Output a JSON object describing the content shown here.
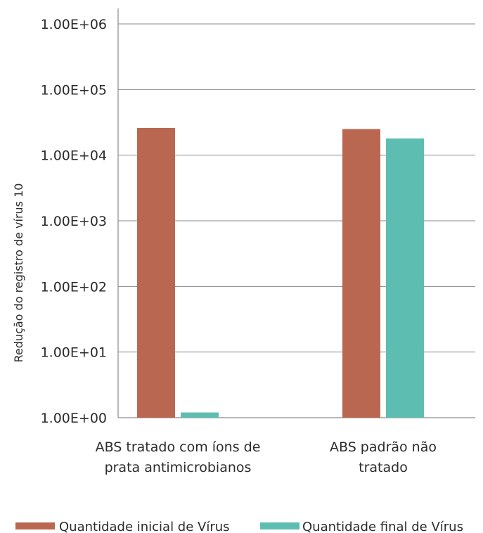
{
  "colors": {
    "series_initial": "#ba6751",
    "series_final": "#5dbdb1",
    "grid": "#8a8a8a",
    "axis": "#8a8a8a",
    "text": "#2b2b2b"
  },
  "chart_data": {
    "type": "bar",
    "title": "",
    "xlabel": "",
    "ylabel": "Redução do registro de vírus 10",
    "scale": "log10",
    "ylim": [
      1,
      1000000
    ],
    "grid": true,
    "legend_position": "bottom",
    "y_ticks": [
      {
        "value": 1,
        "label": "1.00E+00"
      },
      {
        "value": 10,
        "label": "1.00E+01"
      },
      {
        "value": 100,
        "label": "1.00E+02"
      },
      {
        "value": 1000,
        "label": "1.00E+03"
      },
      {
        "value": 10000,
        "label": "1.00E+04"
      },
      {
        "value": 100000,
        "label": "1.00E+05"
      },
      {
        "value": 1000000,
        "label": "1.00E+06"
      }
    ],
    "categories": [
      [
        "ABS tratado com íons de",
        "prata antimicrobianos"
      ],
      [
        "ABS padrão não",
        "tratado"
      ]
    ],
    "series": [
      {
        "name": "Quantidade inicial de Vírus",
        "color": "#ba6751",
        "values": [
          26000,
          25000
        ]
      },
      {
        "name": "Quantidade final de Vírus",
        "color": "#5dbdb1",
        "values": [
          1.2,
          18000
        ]
      }
    ]
  }
}
